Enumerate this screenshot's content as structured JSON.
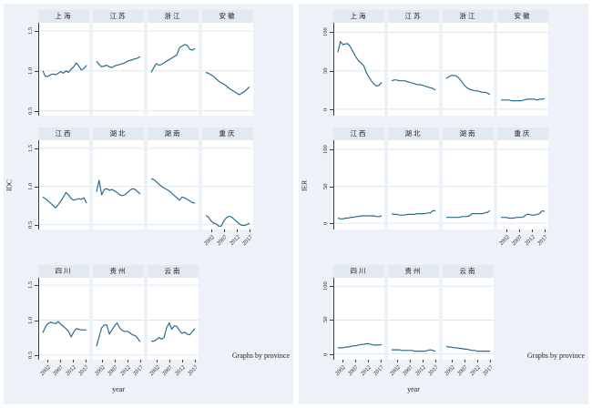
{
  "colors": {
    "page_background": "#ffffff",
    "chart_background": "#edf2f8",
    "strip_background": "#e2e9f1",
    "plot_background": "#ffffff",
    "gridline": "#dde7ee",
    "axis": "#3c3c3c",
    "line": "#2a6b90",
    "text": "#222222"
  },
  "chart_data": [
    {
      "type": "line",
      "ylabel": "IDC",
      "xlabel": "year",
      "note": "Graphs by province",
      "x": [
        2000,
        2001,
        2002,
        2003,
        2004,
        2005,
        2006,
        2007,
        2008,
        2009,
        2010,
        2011,
        2012,
        2013,
        2014,
        2015,
        2016,
        2017
      ],
      "x_tick_values": [
        2002,
        2007,
        2012,
        2017
      ],
      "x_tick_labels": [
        "2002",
        "2007",
        "2012",
        "2017"
      ],
      "y_tick_values": [
        1.5,
        1.0,
        0.5
      ],
      "y_tick_labels": [
        "1.5",
        "1.0",
        "0.5"
      ],
      "y_domain": [
        0.46,
        1.58
      ],
      "legend": "off",
      "grid": "on",
      "series": [
        {
          "name": "上海",
          "key": "shanghai",
          "values": [
            1.0,
            0.93,
            0.93,
            0.95,
            0.96,
            0.95,
            0.97,
            0.99,
            0.97,
            1.0,
            0.98,
            1.02,
            1.05,
            1.1,
            1.06,
            1.01,
            1.03,
            1.07
          ]
        },
        {
          "name": "江苏",
          "key": "jiangsu",
          "values": [
            1.12,
            1.08,
            1.05,
            1.06,
            1.07,
            1.05,
            1.04,
            1.06,
            1.07,
            1.08,
            1.09,
            1.1,
            1.12,
            1.13,
            1.14,
            1.15,
            1.16,
            1.18
          ]
        },
        {
          "name": "浙江",
          "key": "zhejiang",
          "values": [
            0.98,
            1.04,
            1.09,
            1.07,
            1.08,
            1.1,
            1.12,
            1.14,
            1.16,
            1.18,
            1.2,
            1.29,
            1.31,
            1.33,
            1.32,
            1.27,
            1.26,
            1.28
          ]
        },
        {
          "name": "安徽",
          "key": "anhui",
          "values": [
            0.98,
            0.97,
            0.95,
            0.93,
            0.9,
            0.87,
            0.85,
            0.83,
            0.81,
            0.78,
            0.76,
            0.74,
            0.72,
            0.7,
            0.72,
            0.74,
            0.77,
            0.8
          ]
        },
        {
          "name": "江西",
          "key": "jiangxi",
          "values": [
            0.86,
            0.84,
            0.81,
            0.78,
            0.75,
            0.72,
            0.76,
            0.81,
            0.86,
            0.92,
            0.89,
            0.84,
            0.82,
            0.83,
            0.84,
            0.83,
            0.85,
            0.78
          ]
        },
        {
          "name": "湖北",
          "key": "hubei",
          "values": [
            0.93,
            1.08,
            0.89,
            0.96,
            0.97,
            0.95,
            0.96,
            0.94,
            0.92,
            0.89,
            0.88,
            0.89,
            0.92,
            0.95,
            0.97,
            0.96,
            0.93,
            0.9
          ]
        },
        {
          "name": "湖南",
          "key": "hunan",
          "values": [
            1.1,
            1.09,
            1.06,
            1.03,
            1.0,
            0.98,
            0.96,
            0.94,
            0.91,
            0.88,
            0.85,
            0.82,
            0.86,
            0.85,
            0.83,
            0.81,
            0.79,
            0.78
          ]
        },
        {
          "name": "重庆",
          "key": "chongqing",
          "values": [
            0.62,
            0.6,
            0.55,
            0.52,
            0.51,
            0.48,
            0.48,
            0.55,
            0.59,
            0.61,
            0.6,
            0.57,
            0.54,
            0.51,
            0.49,
            0.49,
            0.5,
            0.52
          ]
        },
        {
          "name": "四川",
          "key": "sichuan",
          "values": [
            0.82,
            0.9,
            0.95,
            0.97,
            0.96,
            0.95,
            0.98,
            0.94,
            0.91,
            0.88,
            0.84,
            0.76,
            0.83,
            0.88,
            0.87,
            0.86,
            0.86,
            0.86
          ]
        },
        {
          "name": "贵州",
          "key": "guizhou",
          "values": [
            0.63,
            0.76,
            0.89,
            0.93,
            0.93,
            0.8,
            0.86,
            0.92,
            0.96,
            0.89,
            0.85,
            0.84,
            0.84,
            0.82,
            0.79,
            0.78,
            0.74,
            0.69
          ]
        },
        {
          "name": "云南",
          "key": "yunnan",
          "values": [
            0.7,
            0.7,
            0.72,
            0.75,
            0.73,
            0.75,
            0.89,
            0.96,
            0.87,
            0.92,
            0.91,
            0.85,
            0.81,
            0.83,
            0.8,
            0.79,
            0.84,
            0.88
          ]
        }
      ]
    },
    {
      "type": "line",
      "ylabel": "IER",
      "xlabel": "year",
      "note": "Graphs by province",
      "x": [
        2000,
        2001,
        2002,
        2003,
        2004,
        2005,
        2006,
        2007,
        2008,
        2009,
        2010,
        2011,
        2012,
        2013,
        2014,
        2015,
        2016,
        2017
      ],
      "x_tick_values": [
        2002,
        2007,
        2012,
        2017
      ],
      "x_tick_labels": [
        "2002",
        "2007",
        "2012",
        "2017"
      ],
      "y_tick_values": [
        100,
        50,
        0
      ],
      "y_tick_labels": [
        "100",
        "50",
        "0"
      ],
      "y_domain": [
        -6,
        110
      ],
      "legend": "off",
      "grid": "on",
      "series": [
        {
          "name": "上海",
          "key": "shanghai",
          "values": [
            74,
            88,
            84,
            85,
            85,
            80,
            74,
            68,
            63,
            60,
            57,
            48,
            42,
            37,
            33,
            30,
            31,
            35
          ]
        },
        {
          "name": "江苏",
          "key": "jiangsu",
          "values": [
            37,
            38,
            38,
            37,
            37,
            37,
            36,
            35,
            34,
            33,
            32,
            32,
            31,
            30,
            29,
            28,
            27,
            25
          ]
        },
        {
          "name": "浙江",
          "key": "zhejiang",
          "values": [
            40,
            42,
            44,
            44,
            43,
            40,
            36,
            31,
            28,
            26,
            25,
            24,
            24,
            23,
            22,
            22,
            21,
            19
          ]
        },
        {
          "name": "安徽",
          "key": "anhui",
          "values": [
            12,
            12,
            12,
            12,
            11,
            11,
            11,
            11,
            11,
            12,
            13,
            13,
            13,
            13,
            12,
            13,
            13,
            14
          ]
        },
        {
          "name": "江西",
          "key": "jiangxi",
          "values": [
            7,
            6,
            6,
            7,
            7,
            8,
            8,
            9,
            9,
            10,
            10,
            10,
            10,
            10,
            10,
            9,
            9,
            10
          ]
        },
        {
          "name": "湖北",
          "key": "hubei",
          "values": [
            13,
            12,
            12,
            11,
            11,
            11,
            12,
            12,
            12,
            12,
            13,
            13,
            13,
            13,
            14,
            14,
            17,
            17
          ]
        },
        {
          "name": "湖南",
          "key": "hunan",
          "values": [
            8,
            8,
            8,
            8,
            8,
            8,
            9,
            9,
            9,
            10,
            13,
            13,
            13,
            13,
            13,
            14,
            15,
            17
          ]
        },
        {
          "name": "重庆",
          "key": "chongqing",
          "values": [
            8,
            8,
            8,
            7,
            7,
            7,
            8,
            8,
            8,
            9,
            12,
            12,
            11,
            11,
            12,
            13,
            17,
            16
          ]
        },
        {
          "name": "四川",
          "key": "sichuan",
          "values": [
            9,
            9,
            9,
            10,
            10,
            11,
            12,
            12,
            13,
            14,
            14,
            15,
            15,
            14,
            13,
            13,
            13,
            14
          ]
        },
        {
          "name": "贵州",
          "key": "guizhou",
          "values": [
            6,
            6,
            6,
            6,
            5,
            5,
            5,
            5,
            5,
            4,
            4,
            4,
            4,
            4,
            5,
            6,
            5,
            4
          ]
        },
        {
          "name": "云南",
          "key": "yunnan",
          "values": [
            11,
            10,
            10,
            9,
            9,
            8,
            8,
            7,
            7,
            6,
            5,
            5,
            4,
            4,
            4,
            4,
            4,
            4
          ]
        }
      ]
    }
  ]
}
